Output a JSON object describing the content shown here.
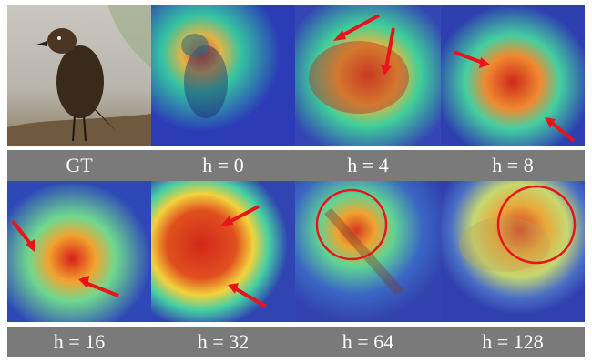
{
  "figure": {
    "panels": [
      {
        "id": "gt",
        "caption": "GT",
        "kind": "photo"
      },
      {
        "id": "h0",
        "caption": "h = 0",
        "kind": "heatmap"
      },
      {
        "id": "h4",
        "caption": "h = 4",
        "kind": "heatmap"
      },
      {
        "id": "h8",
        "caption": "h = 8",
        "kind": "heatmap"
      },
      {
        "id": "h16",
        "caption": "h = 16",
        "kind": "heatmap"
      },
      {
        "id": "h32",
        "caption": "h = 32",
        "kind": "heatmap"
      },
      {
        "id": "h64",
        "caption": "h = 64",
        "kind": "heatmap"
      },
      {
        "id": "h128",
        "caption": "h = 128",
        "kind": "heatmap"
      }
    ],
    "colors": {
      "caption_bar": "#7a7a7a",
      "caption_text": "#ffffff",
      "annotation": "#e8141b",
      "heat_low": "#2a3fb8",
      "heat_mid": "#38d39a",
      "heat_high": "#e23a1a"
    }
  }
}
